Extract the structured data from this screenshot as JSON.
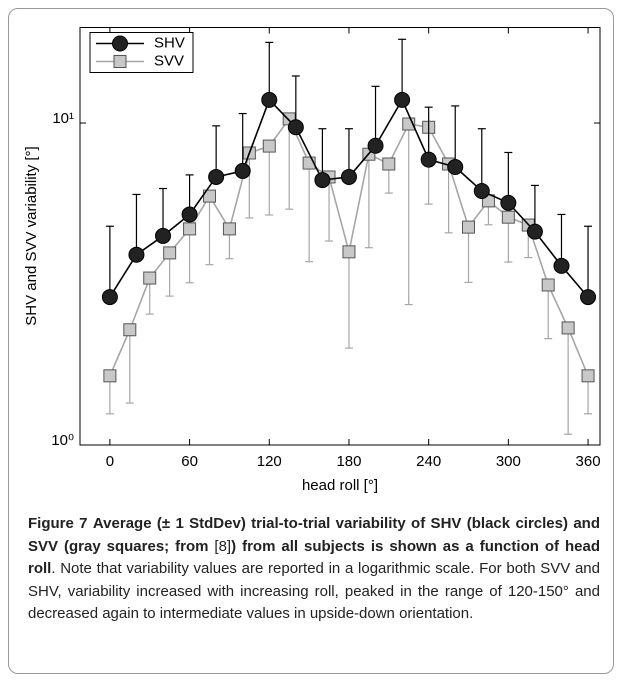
{
  "chart_data": {
    "type": "errorbar",
    "xlabel": "head roll [°]",
    "ylabel": "SHV and SVV variability [°]",
    "xlim": [
      -22.5,
      369
    ],
    "ylim": [
      1,
      19.8
    ],
    "yscale": "log",
    "xticks": [
      0,
      60,
      120,
      180,
      240,
      300,
      360
    ],
    "yticks": [
      {
        "value": 1,
        "label": "10⁰"
      },
      {
        "value": 10,
        "label": "10¹"
      }
    ],
    "legend": "upper left",
    "series": [
      {
        "name": "SHV",
        "color": "#000000",
        "marker": "circle",
        "error_direction": "up",
        "x": [
          0,
          20,
          40,
          60,
          80,
          100,
          120,
          140,
          160,
          180,
          200,
          220,
          240,
          260,
          280,
          300,
          320,
          340,
          360
        ],
        "values": [
          2.88,
          3.9,
          4.46,
          5.2,
          6.8,
          7.1,
          11.8,
          9.7,
          6.65,
          6.8,
          8.5,
          11.8,
          7.7,
          7.3,
          6.15,
          5.65,
          4.6,
          3.6,
          2.88
        ],
        "errors": [
          1.9,
          2.1,
          1.8,
          1.7,
          3.0,
          3.6,
          6.0,
          4.3,
          2.95,
          2.8,
          4.5,
          6.4,
          3.5,
          4.0,
          3.45,
          2.45,
          1.8,
          1.6,
          1.9
        ]
      },
      {
        "name": "SVV",
        "color": "#a6a6a6",
        "marker": "square",
        "error_direction": "down",
        "x": [
          0,
          15,
          30,
          45,
          60,
          75,
          90,
          105,
          120,
          135,
          150,
          165,
          180,
          195,
          210,
          225,
          240,
          255,
          270,
          285,
          300,
          315,
          330,
          345,
          360
        ],
        "values": [
          1.64,
          2.28,
          3.3,
          3.95,
          4.69,
          5.93,
          4.69,
          8.07,
          8.48,
          10.3,
          7.51,
          6.8,
          3.98,
          8.0,
          7.46,
          9.93,
          9.7,
          7.46,
          4.75,
          5.73,
          5.1,
          4.82,
          3.14,
          2.31,
          1.64
        ],
        "errors": [
          0.39,
          0.93,
          0.75,
          1.05,
          1.5,
          2.3,
          0.9,
          3.0,
          3.3,
          4.9,
          3.8,
          2.5,
          1.98,
          3.9,
          1.4,
          7.2,
          4.1,
          2.9,
          1.55,
          0.9,
          1.4,
          1.0,
          1.0,
          1.23,
          0.39
        ]
      }
    ]
  },
  "caption": {
    "label": "Figure 7",
    "bold_1": "Average (± 1 StdDev) trial-to-trial variability of SHV (black circles) and SVV (gray squares; from ",
    "reference": "[8]",
    "bold_2": ") from all subjects is shown as a function of head roll",
    "text": ". Note that variability values are reported in a logarithmic scale. For both SVV and SHV, variability increased with increasing roll, peaked in the range of 120-150° and decreased again to intermediate values in upside-down orientation."
  }
}
